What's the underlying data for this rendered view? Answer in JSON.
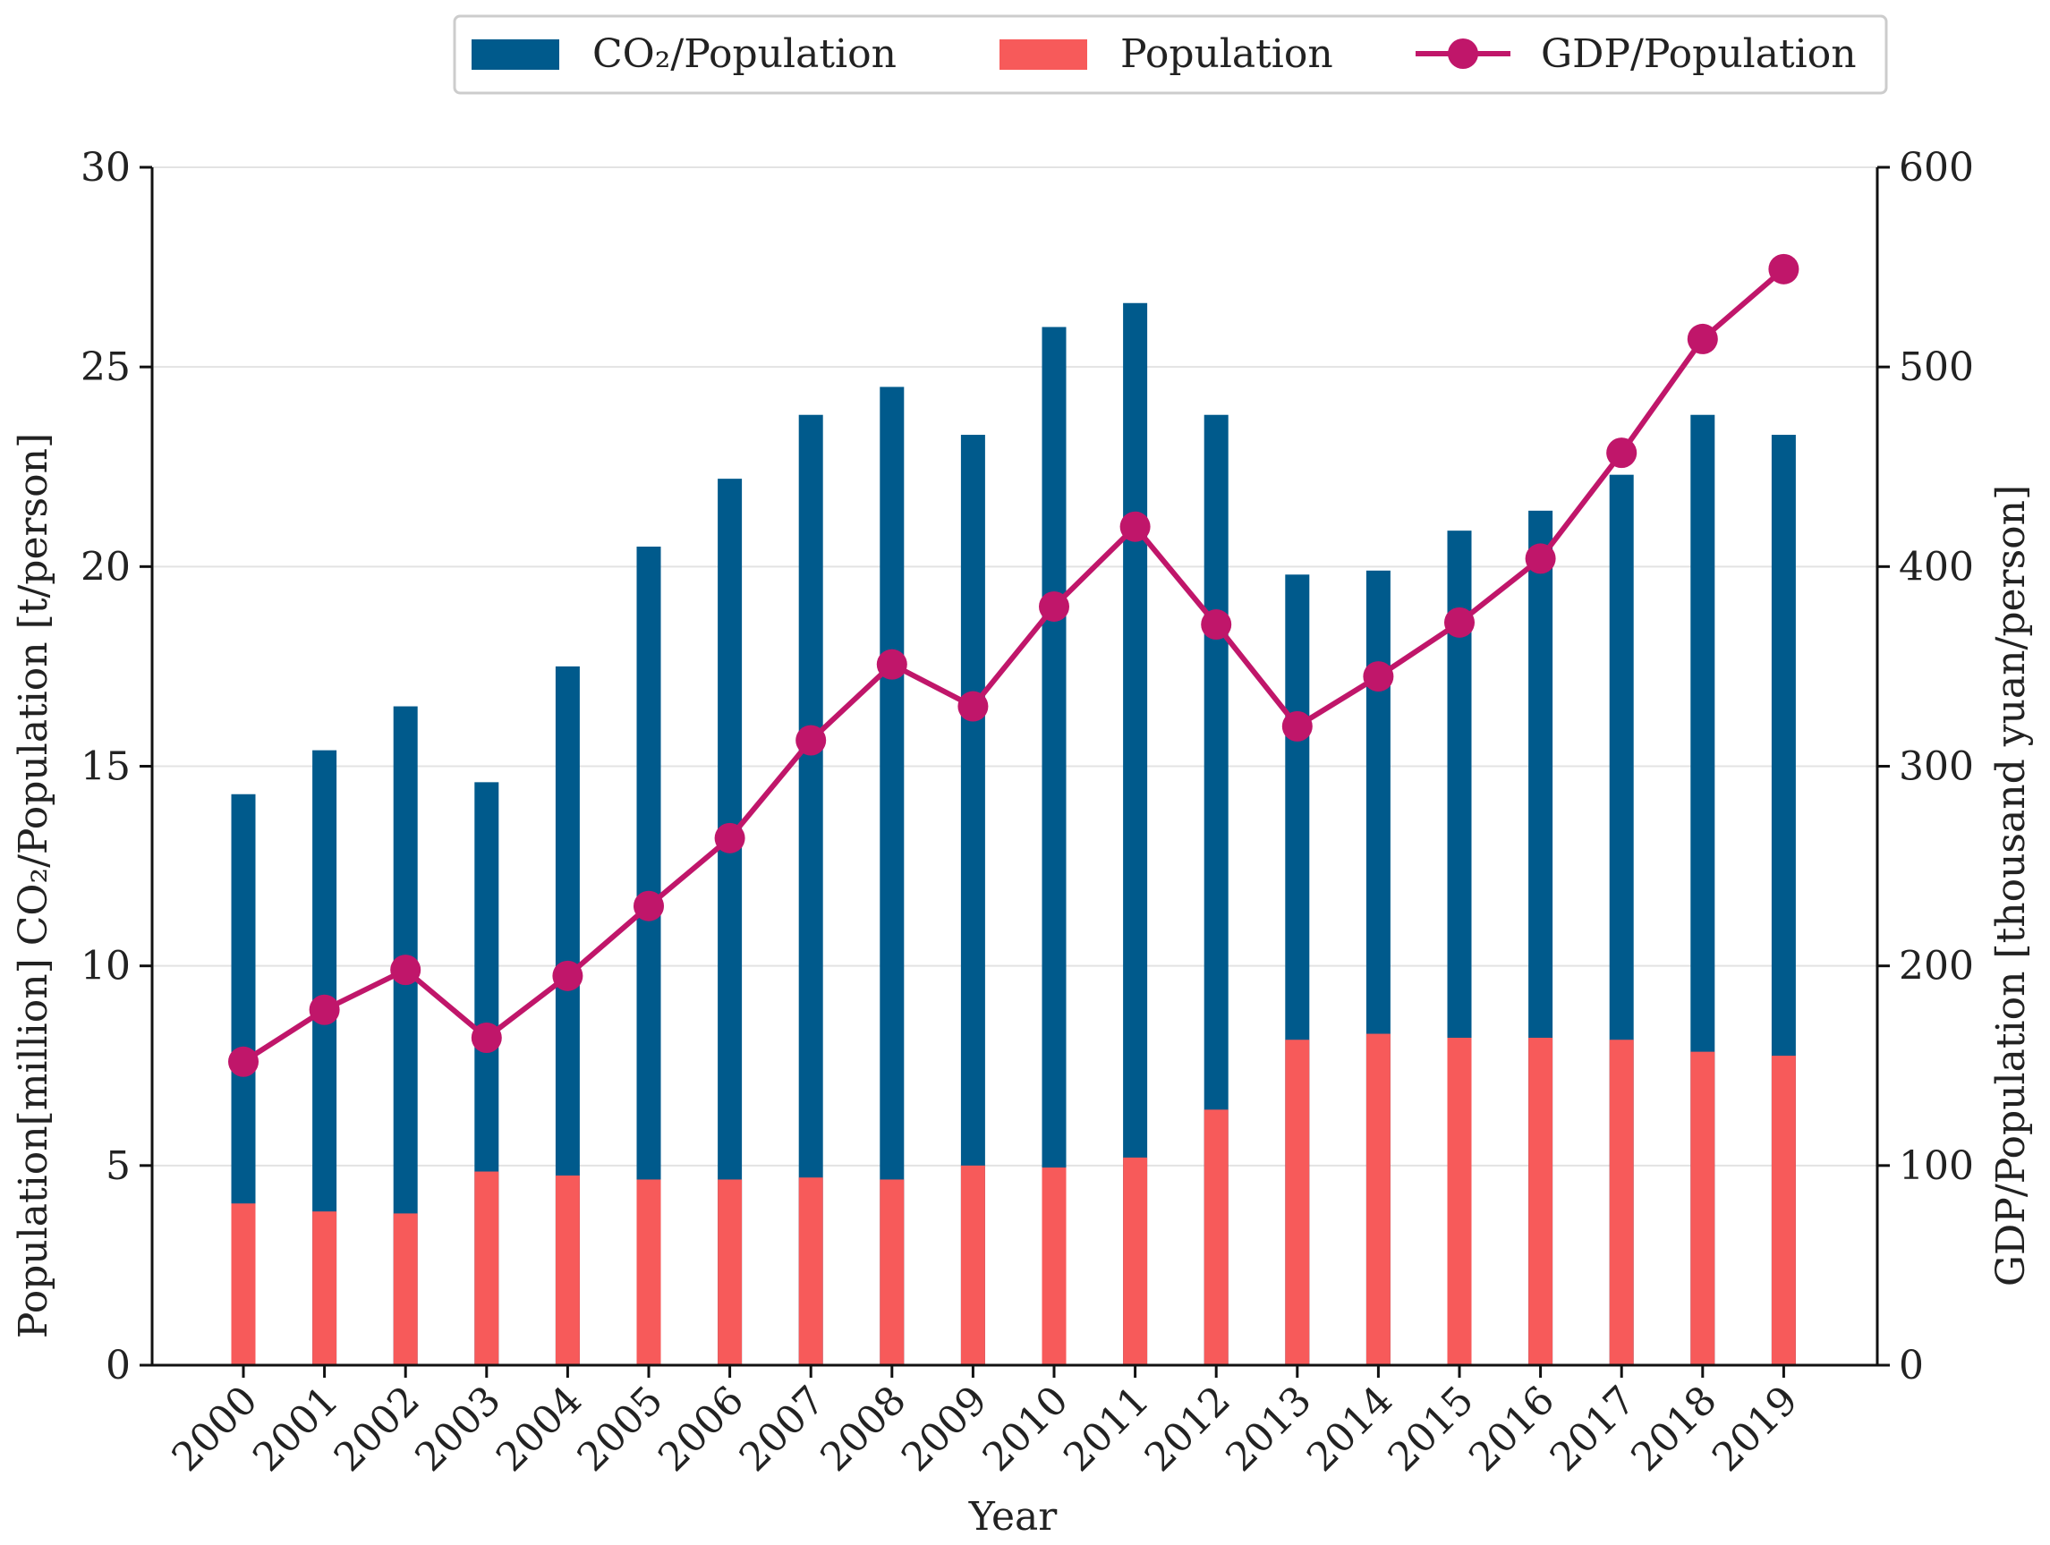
{
  "chart_data": {
    "type": "bar",
    "subtype": "overlapping-bars-with-secondary-line",
    "categories": [
      "2000",
      "2001",
      "2002",
      "2003",
      "2004",
      "2005",
      "2006",
      "2007",
      "2008",
      "2009",
      "2010",
      "2011",
      "2012",
      "2013",
      "2014",
      "2015",
      "2016",
      "2017",
      "2018",
      "2019"
    ],
    "xlabel": "Year",
    "ylabel_left": "Population[million] CO₂/Population [t/person]",
    "ylabel_right": "GDP/Population [thousand yuan/person]",
    "ylim_left": [
      0,
      30
    ],
    "ylim_right": [
      0,
      600
    ],
    "yticks_left": [
      "0",
      "5",
      "10",
      "15",
      "20",
      "25",
      "30"
    ],
    "yticks_right": [
      "0",
      "100",
      "200",
      "300",
      "400",
      "500",
      "600"
    ],
    "grid": "horizontal",
    "legend_position": "top",
    "series": [
      {
        "name": "CO₂/Population",
        "kind": "bar",
        "axis": "left",
        "color": "#005a8c",
        "values": [
          14.3,
          15.4,
          16.5,
          14.6,
          17.5,
          20.5,
          22.2,
          23.8,
          24.5,
          23.3,
          26.0,
          26.6,
          23.8,
          19.8,
          19.9,
          20.9,
          21.4,
          22.3,
          23.8,
          23.3
        ]
      },
      {
        "name": "Population",
        "kind": "bar",
        "axis": "left",
        "color": "#f75a5a",
        "values": [
          4.05,
          3.85,
          3.8,
          4.85,
          4.75,
          4.65,
          4.65,
          4.7,
          4.65,
          5.0,
          4.95,
          5.2,
          6.4,
          8.15,
          8.3,
          8.2,
          8.2,
          8.15,
          7.85,
          7.75
        ]
      },
      {
        "name": "GDP/Population",
        "kind": "line",
        "axis": "right",
        "color": "#c0166a",
        "values": [
          152,
          178,
          198,
          164,
          195,
          230,
          264,
          313,
          351,
          330,
          380,
          420,
          371,
          320,
          345,
          372,
          404,
          457,
          514,
          549
        ]
      }
    ],
    "legend": [
      {
        "label": "CO₂/Population",
        "symbol": "patch",
        "color": "#005a8c"
      },
      {
        "label": "Population",
        "symbol": "patch",
        "color": "#f75a5a"
      },
      {
        "label": "GDP/Population",
        "symbol": "line-marker",
        "color": "#c0166a"
      }
    ]
  }
}
